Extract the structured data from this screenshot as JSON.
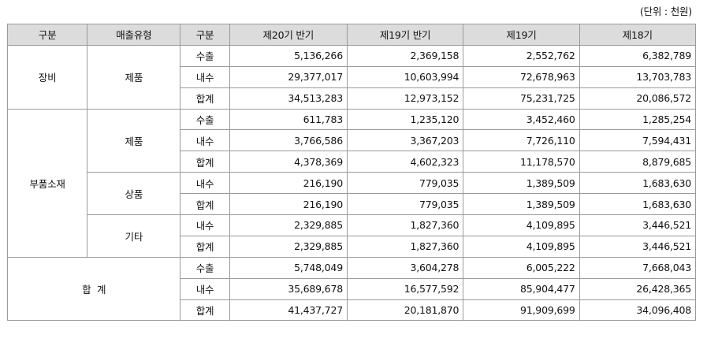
{
  "unit_label": "(단위 : 천원)",
  "headers": [
    "구분",
    "매출유형",
    "구분",
    "제20기 반기",
    "제19기 반기",
    "제19기",
    "제18기"
  ],
  "groups": {
    "equipment": {
      "label": "장비",
      "product": {
        "label": "제품",
        "rows": [
          {
            "label": "수출",
            "values": [
              "5,136,266",
              "2,369,158",
              "2,552,762",
              "6,382,789"
            ]
          },
          {
            "label": "내수",
            "values": [
              "29,377,017",
              "10,603,994",
              "72,678,963",
              "13,703,783"
            ]
          },
          {
            "label": "합계",
            "values": [
              "34,513,283",
              "12,973,152",
              "75,231,725",
              "20,086,572"
            ]
          }
        ]
      }
    },
    "parts": {
      "label": "부품소재",
      "product": {
        "label": "제품",
        "rows": [
          {
            "label": "수출",
            "values": [
              "611,783",
              "1,235,120",
              "3,452,460",
              "1,285,254"
            ]
          },
          {
            "label": "내수",
            "values": [
              "3,766,586",
              "3,367,203",
              "7,726,110",
              "7,594,431"
            ]
          },
          {
            "label": "합계",
            "values": [
              "4,378,369",
              "4,602,323",
              "11,178,570",
              "8,879,685"
            ]
          }
        ]
      },
      "merchandise": {
        "label": "상품",
        "rows": [
          {
            "label": "내수",
            "values": [
              "216,190",
              "779,035",
              "1,389,509",
              "1,683,630"
            ]
          },
          {
            "label": "합계",
            "values": [
              "216,190",
              "779,035",
              "1,389,509",
              "1,683,630"
            ]
          }
        ]
      },
      "other": {
        "label": "기타",
        "rows": [
          {
            "label": "내수",
            "values": [
              "2,329,885",
              "1,827,360",
              "4,109,895",
              "3,446,521"
            ]
          },
          {
            "label": "합계",
            "values": [
              "2,329,885",
              "1,827,360",
              "4,109,895",
              "3,446,521"
            ]
          }
        ]
      }
    },
    "total": {
      "label": "합  계",
      "rows": [
        {
          "label": "수출",
          "values": [
            "5,748,049",
            "3,604,278",
            "6,005,222",
            "7,668,043"
          ]
        },
        {
          "label": "내수",
          "values": [
            "35,689,678",
            "16,577,592",
            "85,904,477",
            "26,428,365"
          ]
        },
        {
          "label": "합계",
          "values": [
            "41,437,727",
            "20,181,870",
            "91,909,699",
            "34,096,408"
          ]
        }
      ]
    }
  }
}
